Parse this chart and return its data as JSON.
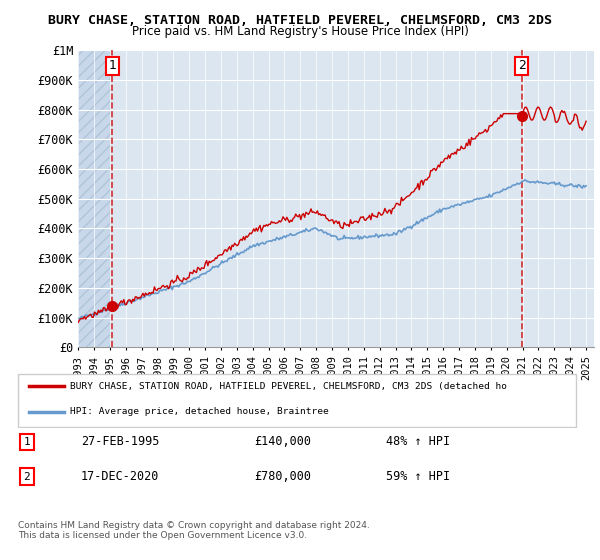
{
  "title_line1": "BURY CHASE, STATION ROAD, HATFIELD PEVEREL, CHELMSFORD, CM3 2DS",
  "title_line2": "Price paid vs. HM Land Registry's House Price Index (HPI)",
  "ylim": [
    0,
    1000000
  ],
  "yticks": [
    0,
    100000,
    200000,
    300000,
    400000,
    500000,
    600000,
    700000,
    800000,
    900000,
    1000000
  ],
  "ytick_labels": [
    "£0",
    "£100K",
    "£200K",
    "£300K",
    "£400K",
    "£500K",
    "£600K",
    "£700K",
    "£800K",
    "£900K",
    "£1M"
  ],
  "hpi_color": "#6699cc",
  "price_color": "#cc0000",
  "marker_color": "#cc0000",
  "vline_color": "#cc0000",
  "bg_color": "#dce6f1",
  "hatch_color": "#b8c9e0",
  "grid_color": "#ffffff",
  "point1_year": 1995.15,
  "point1_price": 140000,
  "point2_year": 2020.96,
  "point2_price": 780000,
  "legend_label1": "BURY CHASE, STATION ROAD, HATFIELD PEVEREL, CHELMSFORD, CM3 2DS (detached ho",
  "legend_label2": "HPI: Average price, detached house, Braintree",
  "annotation1_text": "1",
  "annotation2_text": "2",
  "table_row1": [
    "1",
    "27-FEB-1995",
    "£140,000",
    "48% ↑ HPI"
  ],
  "table_row2": [
    "2",
    "17-DEC-2020",
    "£780,000",
    "59% ↑ HPI"
  ],
  "footer": "Contains HM Land Registry data © Crown copyright and database right 2024.\nThis data is licensed under the Open Government Licence v3.0.",
  "xmin": 1993,
  "xmax": 2025.5
}
